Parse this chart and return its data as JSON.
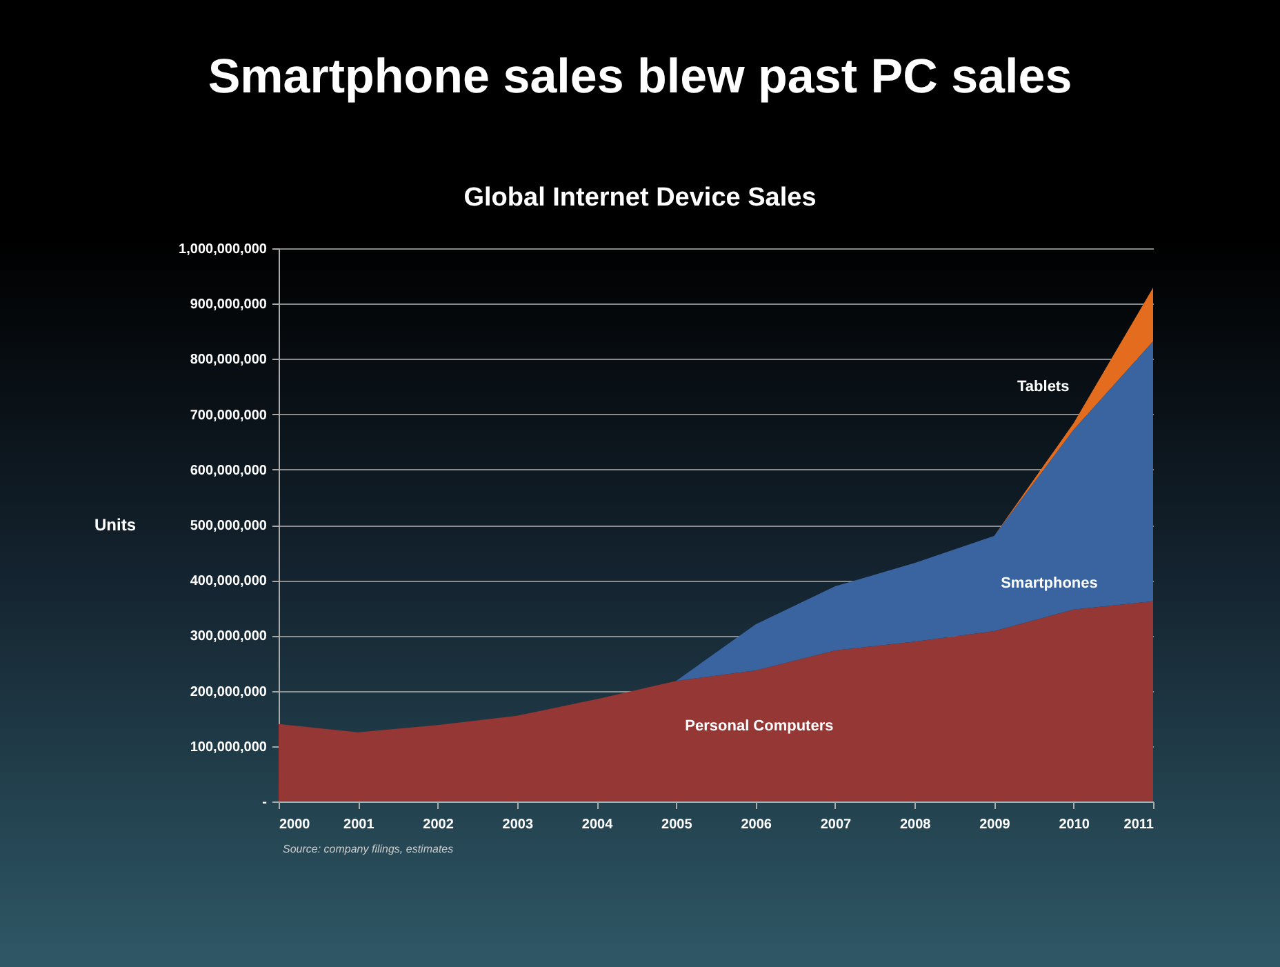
{
  "chart_data": {
    "type": "area",
    "title": "Smartphone sales blew past PC sales",
    "subtitle": "Global Internet Device Sales",
    "ylabel": "Units",
    "stacked": true,
    "grid": "y",
    "legend": false,
    "x": [
      2000,
      2001,
      2002,
      2003,
      2004,
      2005,
      2006,
      2007,
      2008,
      2009,
      2010,
      2011
    ],
    "xlim": [
      2000,
      2011
    ],
    "xticks": [
      2000,
      2001,
      2002,
      2003,
      2004,
      2005,
      2006,
      2007,
      2008,
      2009,
      2010,
      2011
    ],
    "ylim": [
      0,
      1000000000
    ],
    "yticks": [
      {
        "value": 0,
        "label": "-"
      },
      {
        "value": 100000000,
        "label": "100,000,000"
      },
      {
        "value": 200000000,
        "label": "200,000,000"
      },
      {
        "value": 300000000,
        "label": "300,000,000"
      },
      {
        "value": 400000000,
        "label": "400,000,000"
      },
      {
        "value": 500000000,
        "label": "500,000,000"
      },
      {
        "value": 600000000,
        "label": "600,000,000"
      },
      {
        "value": 700000000,
        "label": "700,000,000"
      },
      {
        "value": 800000000,
        "label": "800,000,000"
      },
      {
        "value": 900000000,
        "label": "900,000,000"
      },
      {
        "value": 1000000000,
        "label": "1,000,000,000"
      }
    ],
    "series": [
      {
        "name": "Personal Computers",
        "color": "#953735",
        "values": [
          140000000,
          125000000,
          138000000,
          155000000,
          185000000,
          218000000,
          237000000,
          273000000,
          289000000,
          308000000,
          347000000,
          362000000
        ]
      },
      {
        "name": "Smartphones",
        "color": "#3a64a0",
        "values": [
          0,
          0,
          0,
          0,
          0,
          0,
          83000000,
          116000000,
          142000000,
          172000000,
          325000000,
          470000000
        ]
      },
      {
        "name": "Tablets",
        "color": "#e46c1f",
        "values": [
          0,
          0,
          0,
          0,
          0,
          0,
          0,
          0,
          0,
          0,
          12000000,
          97000000
        ]
      }
    ],
    "annotations": [
      "Source: company filings, estimates"
    ]
  }
}
